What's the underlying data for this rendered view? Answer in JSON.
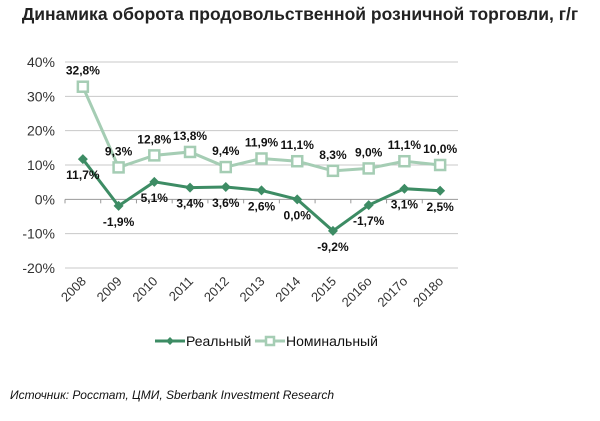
{
  "chart_data": {
    "type": "line",
    "title": "Динамика оборота продовольственной розничной торговли, г/г",
    "categories": [
      "2008",
      "2009",
      "2010",
      "2011",
      "2012",
      "2013",
      "2014",
      "2015",
      "2016о",
      "2017о",
      "2018о"
    ],
    "series": [
      {
        "name": "Реальный",
        "values": [
          11.7,
          -1.9,
          5.1,
          3.4,
          3.6,
          2.6,
          0.0,
          -9.2,
          -1.7,
          3.1,
          2.5
        ],
        "labels": [
          "11,7%",
          "-1,9%",
          "5,1%",
          "3,4%",
          "3,6%",
          "2,6%",
          "0,0%",
          "-9,2%",
          "-1,7%",
          "3,1%",
          "2,5%"
        ],
        "color": "#3d8c64",
        "marker": "diamond"
      },
      {
        "name": "Номинальный",
        "values": [
          32.8,
          9.3,
          12.8,
          13.8,
          9.4,
          11.9,
          11.1,
          8.3,
          9.0,
          11.1,
          10.0
        ],
        "labels": [
          "32,8%",
          "9,3%",
          "12,8%",
          "13,8%",
          "9,4%",
          "11,9%",
          "11,1%",
          "8,3%",
          "9,0%",
          "11,1%",
          "10,0%"
        ],
        "color": "#a5cdb4",
        "marker": "hollow-square"
      }
    ],
    "ylim": [
      -20,
      40
    ],
    "yticks": [
      40,
      30,
      20,
      10,
      0,
      -10,
      -20
    ],
    "ytick_labels": [
      "40%",
      "30%",
      "20%",
      "10%",
      "0%",
      "-10%",
      "-20%"
    ],
    "grid": true,
    "legend": "bottom"
  },
  "source": "Источник: Росстат, ЦМИ, Sberbank Investment Research"
}
